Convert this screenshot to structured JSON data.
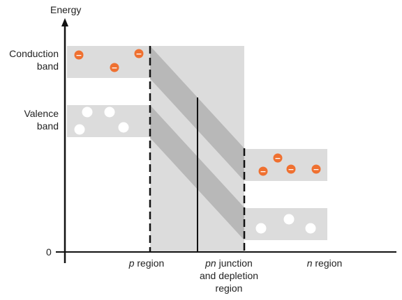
{
  "axis": {
    "y_label": "Energy",
    "zero_label": "0"
  },
  "bands": {
    "conduction_label_line1": "Conduction",
    "conduction_label_line2": "band",
    "valence_label_line1": "Valence",
    "valence_label_line2": "band"
  },
  "regions": {
    "p_italic": "p",
    "p_rest": " region",
    "pn_italic": "pn",
    "pn_rest": " junction",
    "pn_line2": "and depletion",
    "pn_line3": "region",
    "n_italic": "n",
    "n_rest": " region"
  },
  "carriers": {
    "electron_sign": "−"
  },
  "colors": {
    "band_fill": "#dcdcdc",
    "slope_fill": "#b8b8b8",
    "electron": "#ef7030",
    "hole": "#ffffff",
    "axis": "#111111"
  }
}
